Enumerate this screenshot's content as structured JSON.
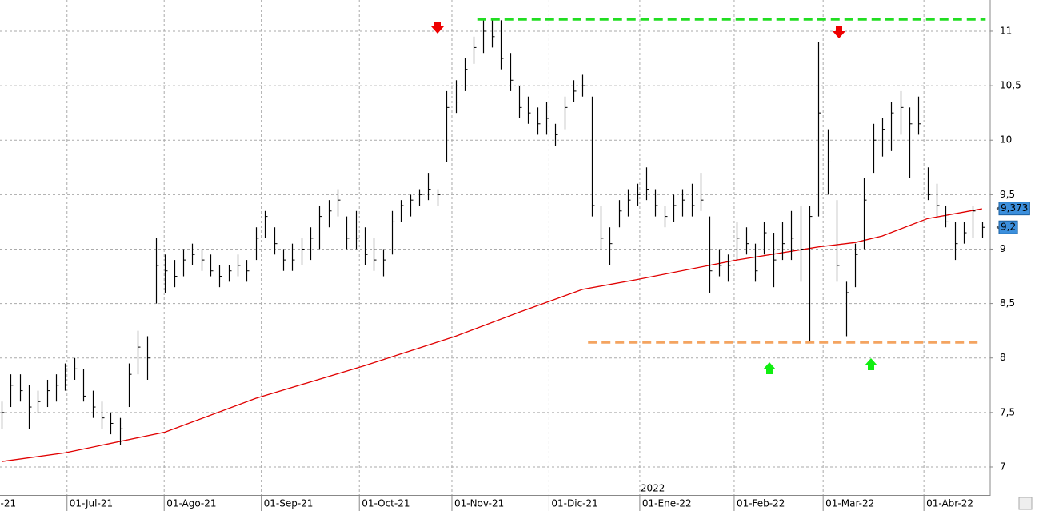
{
  "chart_data": {
    "type": "ohlc",
    "color": "#000000",
    "xlim": [
      -0.18,
      108.9
    ],
    "ylim": [
      6.743,
      11.286
    ],
    "grid": true,
    "yticks": [
      7,
      {
        "value": 7.5,
        "label": "7,5"
      },
      8,
      {
        "value": 8.5,
        "label": "8,5"
      },
      9,
      {
        "value": 9.5,
        "label": "9,5"
      },
      10,
      {
        "value": 10.5,
        "label": "10,5"
      },
      11
    ],
    "xticks": [
      {
        "value": -0.4,
        "label": "-21"
      },
      {
        "value": 7.2,
        "label": "01-Jul-21"
      },
      {
        "value": 17.9,
        "label": "01-Ago-21"
      },
      {
        "value": 28.6,
        "label": "01-Sep-21"
      },
      {
        "value": 39.4,
        "label": "01-Oct-21"
      },
      {
        "value": 49.6,
        "label": "01-Nov-21"
      },
      {
        "value": 60.3,
        "label": "01-Dic-21"
      },
      {
        "value": 70.3,
        "label": "01-Ene-22"
      },
      {
        "value": 80.7,
        "label": "01-Feb-22"
      },
      {
        "value": 90.5,
        "label": "01-Mar-22"
      },
      {
        "value": 101.6,
        "label": "01-Abr-22"
      }
    ],
    "year_label": "2022",
    "high": [
      7.6,
      7.85,
      7.85,
      7.75,
      7.7,
      7.8,
      7.85,
      7.95,
      8.0,
      7.9,
      7.7,
      7.6,
      7.5,
      7.45,
      7.95,
      8.25,
      8.2,
      9.1,
      8.95,
      8.9,
      9.0,
      9.05,
      9.0,
      8.95,
      8.85,
      8.85,
      8.95,
      8.9,
      9.2,
      9.35,
      9.2,
      9.0,
      9.05,
      9.1,
      9.2,
      9.4,
      9.45,
      9.55,
      9.3,
      9.35,
      9.2,
      9.1,
      9.0,
      9.35,
      9.45,
      9.5,
      9.55,
      9.7,
      9.55,
      10.45,
      10.55,
      10.75,
      10.95,
      11.1,
      11.1,
      11.1,
      10.8,
      10.5,
      10.4,
      10.3,
      10.35,
      10.15,
      10.4,
      10.55,
      10.6,
      10.4,
      9.4,
      9.2,
      9.45,
      9.55,
      9.6,
      9.75,
      9.55,
      9.4,
      9.5,
      9.55,
      9.6,
      9.7,
      9.3,
      9.0,
      8.95,
      9.25,
      9.2,
      9.05,
      9.25,
      9.15,
      9.25,
      9.35,
      9.4,
      9.4,
      10.9,
      10.1,
      9.45,
      8.7,
      9.05,
      9.65,
      10.15,
      10.2,
      10.35,
      10.45,
      10.3,
      10.4,
      9.75,
      9.6,
      9.4,
      9.25,
      9.25,
      9.4,
      9.25
    ],
    "low": [
      7.35,
      7.55,
      7.6,
      7.35,
      7.5,
      7.55,
      7.6,
      7.7,
      7.8,
      7.6,
      7.45,
      7.35,
      7.3,
      7.2,
      7.55,
      7.85,
      7.8,
      8.5,
      8.6,
      8.65,
      8.75,
      8.85,
      8.8,
      8.75,
      8.65,
      8.7,
      8.75,
      8.7,
      8.9,
      9.1,
      8.95,
      8.8,
      8.8,
      8.85,
      8.9,
      9.0,
      9.2,
      9.3,
      9.0,
      9.0,
      8.85,
      8.8,
      8.75,
      8.95,
      9.25,
      9.3,
      9.4,
      9.45,
      9.4,
      9.8,
      10.25,
      10.45,
      10.7,
      10.8,
      10.85,
      10.65,
      10.45,
      10.2,
      10.15,
      10.05,
      10.05,
      9.95,
      10.1,
      10.35,
      10.4,
      9.3,
      9.0,
      8.85,
      9.2,
      9.3,
      9.4,
      9.45,
      9.3,
      9.2,
      9.25,
      9.3,
      9.3,
      9.35,
      8.6,
      8.75,
      8.7,
      8.9,
      8.95,
      8.7,
      8.95,
      8.65,
      8.9,
      8.9,
      8.7,
      8.15,
      9.3,
      9.5,
      8.7,
      8.2,
      8.65,
      9.0,
      9.7,
      9.85,
      9.9,
      10.05,
      9.65,
      10.05,
      9.45,
      9.3,
      9.2,
      8.9,
      9.05,
      9.1,
      9.1
    ],
    "close": [
      7.5,
      7.75,
      7.7,
      7.55,
      7.6,
      7.7,
      7.75,
      7.9,
      7.9,
      7.65,
      7.55,
      7.45,
      7.4,
      7.35,
      7.85,
      8.1,
      8.0,
      8.85,
      8.8,
      8.75,
      8.9,
      8.95,
      8.9,
      8.8,
      8.75,
      8.8,
      8.85,
      8.8,
      9.1,
      9.3,
      9.05,
      8.9,
      8.9,
      9.0,
      9.1,
      9.3,
      9.35,
      9.45,
      9.1,
      9.1,
      8.95,
      8.9,
      8.9,
      9.25,
      9.4,
      9.45,
      9.5,
      9.55,
      9.5,
      10.3,
      10.35,
      10.65,
      10.85,
      11.0,
      10.95,
      10.75,
      10.55,
      10.3,
      10.25,
      10.15,
      10.2,
      10.05,
      10.3,
      10.45,
      10.5,
      9.4,
      9.1,
      9.05,
      9.35,
      9.45,
      9.5,
      9.55,
      9.4,
      9.3,
      9.4,
      9.45,
      9.4,
      9.45,
      8.8,
      8.85,
      8.85,
      9.1,
      9.05,
      8.8,
      9.15,
      8.9,
      9.05,
      9.1,
      9.0,
      9.3,
      10.25,
      9.8,
      8.85,
      8.6,
      8.95,
      9.45,
      10.0,
      10.1,
      10.25,
      10.3,
      10.15,
      10.15,
      9.5,
      9.4,
      9.25,
      9.05,
      9.15,
      9.35,
      9.2
    ],
    "moving_average": {
      "color": "#e00000",
      "x": [
        0,
        7,
        18,
        28,
        40,
        50,
        57,
        64,
        70,
        81,
        90,
        94,
        97,
        102,
        108
      ],
      "values": [
        7.05,
        7.13,
        7.32,
        7.63,
        7.93,
        8.2,
        8.42,
        8.63,
        8.72,
        8.9,
        9.02,
        9.06,
        9.12,
        9.28,
        9.37
      ]
    },
    "levels": [
      {
        "value": 11.11,
        "x": [
          52.4,
          108.4
        ],
        "color": "#22dd22"
      },
      {
        "value": 8.145,
        "x": [
          64.6,
          108.0
        ],
        "color": "#f4a460"
      }
    ],
    "price_labels": [
      {
        "value": 9.373,
        "label": "9,373"
      },
      {
        "value": 9.2,
        "label": "9,2"
      }
    ]
  }
}
